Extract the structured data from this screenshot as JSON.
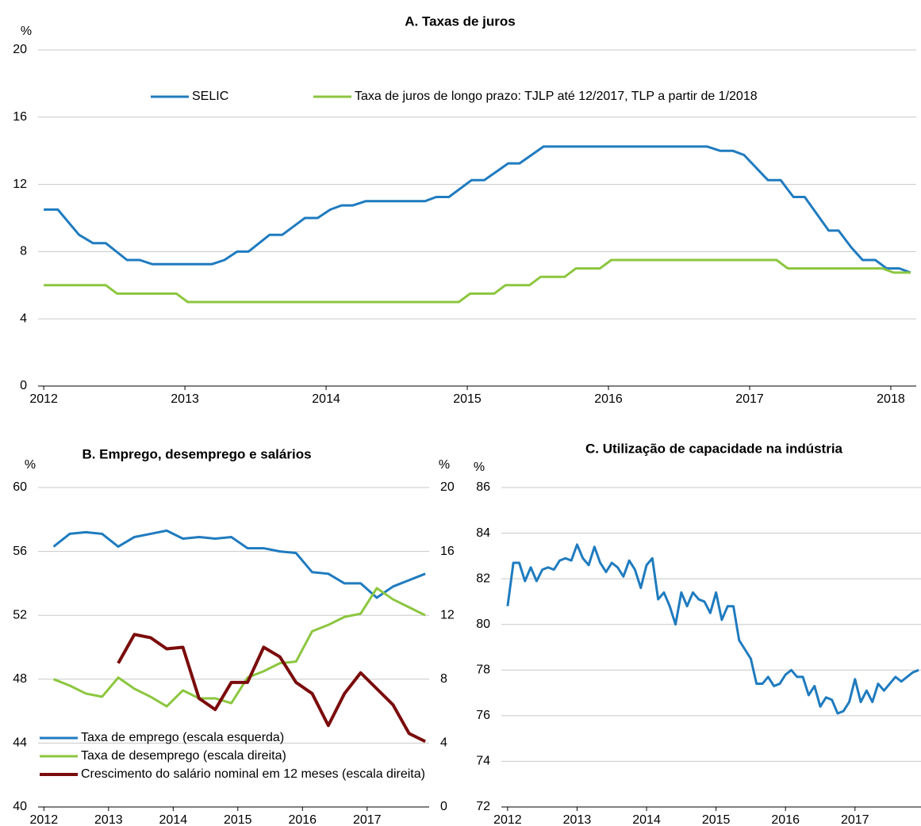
{
  "chart_data": [
    {
      "type": "line",
      "title": "A. Taxas de juros",
      "y_label": "%",
      "xlim": [
        2011.96,
        2018.18
      ],
      "xticks": [
        2012,
        2013,
        2014,
        2015,
        2016,
        2017,
        2018
      ],
      "ylim": [
        0,
        20
      ],
      "yticks": [
        0,
        4,
        8,
        12,
        16,
        20
      ],
      "grid": true,
      "legend": "top",
      "series": [
        {
          "name": "SELIC",
          "color": "#1f7bbf",
          "x": [
            2012.0,
            2012.1,
            2012.25,
            2012.35,
            2012.44,
            2012.59,
            2012.68,
            2012.77,
            2013.19,
            2013.28,
            2013.37,
            2013.45,
            2013.6,
            2013.69,
            2013.85,
            2013.94,
            2014.03,
            2014.11,
            2014.19,
            2014.28,
            2014.7,
            2014.78,
            2014.87,
            2015.03,
            2015.12,
            2015.29,
            2015.37,
            2015.54,
            2016.7,
            2016.79,
            2016.88,
            2016.96,
            2017.13,
            2017.22,
            2017.31,
            2017.39,
            2017.56,
            2017.63,
            2017.72,
            2017.8,
            2017.89,
            2017.97,
            2018.06,
            2018.14
          ],
          "values": [
            10.5,
            10.5,
            9.0,
            8.5,
            8.5,
            7.5,
            7.5,
            7.25,
            7.25,
            7.5,
            8.0,
            8.0,
            9.0,
            9.0,
            10.0,
            10.0,
            10.5,
            10.75,
            10.75,
            11.0,
            11.0,
            11.25,
            11.25,
            12.25,
            12.25,
            13.25,
            13.25,
            14.25,
            14.25,
            14.0,
            14.0,
            13.75,
            12.25,
            12.25,
            11.25,
            11.25,
            9.25,
            9.25,
            8.25,
            7.5,
            7.5,
            7.0,
            7.0,
            6.75
          ]
        },
        {
          "name": "Taxa de juros de longo prazo: TJLP até 12/2017, TLP a partir de 1/2018",
          "color": "#8cc63f",
          "x": [
            2012.0,
            2012.44,
            2012.52,
            2012.94,
            2013.02,
            2014.94,
            2015.02,
            2015.19,
            2015.27,
            2015.44,
            2015.52,
            2015.69,
            2015.77,
            2015.94,
            2016.02,
            2017.19,
            2017.27,
            2017.94,
            2018.02,
            2018.14
          ],
          "values": [
            6.0,
            6.0,
            5.5,
            5.5,
            5.0,
            5.0,
            5.5,
            5.5,
            6.0,
            6.0,
            6.5,
            6.5,
            7.0,
            7.0,
            7.5,
            7.5,
            7.0,
            7.0,
            6.75,
            6.75
          ]
        }
      ]
    },
    {
      "type": "line",
      "title": "B. Emprego, desemprego e salários",
      "y_label": "%",
      "y2_label": "%",
      "xlim": [
        2011.91,
        2017.96
      ],
      "xticks": [
        2012,
        2013,
        2014,
        2015,
        2016,
        2017
      ],
      "ylim": [
        40,
        60
      ],
      "yticks": [
        40,
        44,
        48,
        52,
        56,
        60
      ],
      "y2lim": [
        0,
        20
      ],
      "y2ticks": [
        0,
        4,
        8,
        12,
        16,
        20
      ],
      "grid": true,
      "legend": "lower left",
      "x": [
        2012.15,
        2012.4,
        2012.65,
        2012.9,
        2013.15,
        2013.4,
        2013.65,
        2013.9,
        2014.15,
        2014.4,
        2014.65,
        2014.9,
        2015.15,
        2015.4,
        2015.65,
        2015.9,
        2016.15,
        2016.4,
        2016.65,
        2016.9,
        2017.15,
        2017.4,
        2017.65,
        2017.9
      ],
      "series": [
        {
          "name": "Taxa de emprego (escala esquerda)",
          "color": "#1f7bbf",
          "values": [
            56.3,
            57.1,
            57.2,
            57.1,
            56.3,
            56.9,
            57.1,
            57.3,
            56.8,
            56.9,
            56.8,
            56.9,
            56.2,
            56.2,
            56.0,
            55.9,
            54.7,
            54.6,
            54.0,
            54.0,
            53.1,
            53.8,
            54.2,
            54.6
          ]
        },
        {
          "name": "Taxa de desemprego (escala direita)",
          "color": "#8cc63f",
          "axis": "y2",
          "values": [
            8.0,
            7.6,
            7.1,
            6.9,
            8.1,
            7.4,
            6.9,
            6.3,
            7.3,
            6.8,
            6.8,
            6.5,
            8.1,
            8.5,
            9.0,
            9.1,
            11.0,
            11.4,
            11.9,
            12.1,
            13.7,
            13.0,
            12.5,
            12.0
          ]
        },
        {
          "name": "Crescimento do salário nominal em 12 meses (escala direita)",
          "color": "#7b0c0c",
          "axis": "y2",
          "values": [
            null,
            null,
            null,
            null,
            9.0,
            10.8,
            10.6,
            9.9,
            10.0,
            6.8,
            6.1,
            7.8,
            7.8,
            10.0,
            9.4,
            7.8,
            7.1,
            5.1,
            7.1,
            8.4,
            7.4,
            6.4,
            4.6,
            4.1
          ]
        }
      ]
    },
    {
      "type": "line",
      "title": "C. Utilização de capacidade na indústria",
      "y_label": "%",
      "xlim": [
        2011.91,
        2017.95
      ],
      "xticks": [
        2012,
        2013,
        2014,
        2015,
        2016,
        2017
      ],
      "ylim": [
        72,
        86
      ],
      "yticks": [
        72,
        74,
        76,
        78,
        80,
        82,
        84,
        86
      ],
      "grid": true,
      "x": [
        2012.0,
        2012.083,
        2012.167,
        2012.25,
        2012.333,
        2012.417,
        2012.5,
        2012.583,
        2012.667,
        2012.75,
        2012.833,
        2012.917,
        2013.0,
        2013.083,
        2013.167,
        2013.25,
        2013.333,
        2013.417,
        2013.5,
        2013.583,
        2013.667,
        2013.75,
        2013.833,
        2013.917,
        2014.0,
        2014.083,
        2014.167,
        2014.25,
        2014.333,
        2014.417,
        2014.5,
        2014.583,
        2014.667,
        2014.75,
        2014.833,
        2014.917,
        2015.0,
        2015.083,
        2015.167,
        2015.25,
        2015.333,
        2015.417,
        2015.5,
        2015.583,
        2015.667,
        2015.75,
        2015.833,
        2015.917,
        2016.0,
        2016.083,
        2016.167,
        2016.25,
        2016.333,
        2016.417,
        2016.5,
        2016.583,
        2016.667,
        2016.75,
        2016.833,
        2016.917,
        2017.0,
        2017.083,
        2017.167,
        2017.25,
        2017.333,
        2017.417,
        2017.5,
        2017.583,
        2017.667,
        2017.75,
        2017.833,
        2017.917
      ],
      "series": [
        {
          "color": "#1f7bbf",
          "values": [
            80.8,
            82.7,
            82.7,
            81.9,
            82.5,
            81.9,
            82.4,
            82.5,
            82.4,
            82.8,
            82.9,
            82.8,
            83.5,
            82.9,
            82.6,
            83.4,
            82.7,
            82.3,
            82.7,
            82.5,
            82.1,
            82.8,
            82.4,
            81.6,
            82.6,
            82.9,
            81.1,
            81.4,
            80.8,
            80.0,
            81.4,
            80.8,
            81.4,
            81.1,
            81.0,
            80.5,
            81.4,
            80.2,
            80.8,
            80.8,
            79.3,
            78.9,
            78.5,
            77.4,
            77.4,
            77.7,
            77.3,
            77.4,
            77.8,
            78.0,
            77.7,
            77.7,
            76.9,
            77.3,
            76.4,
            76.8,
            76.7,
            76.1,
            76.2,
            76.6,
            77.6,
            76.6,
            77.1,
            76.6,
            77.4,
            77.1,
            77.4,
            77.7,
            77.5,
            77.7,
            77.9,
            78.0
          ]
        }
      ]
    }
  ]
}
